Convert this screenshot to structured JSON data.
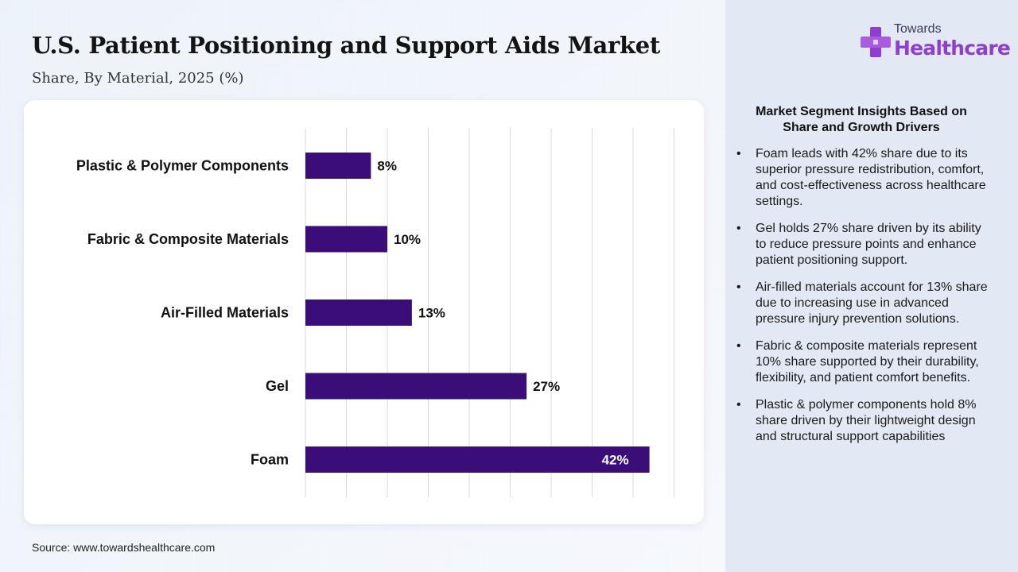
{
  "header": {
    "title": "U.S. Patient Positioning and Support Aids Market",
    "subtitle": "Share, By Material, 2025 (%)"
  },
  "logo": {
    "line1": "Towards",
    "line2": "Healthcare",
    "icon": "medical-cross-icon"
  },
  "chart_data": {
    "type": "bar",
    "orientation": "horizontal",
    "categories": [
      "Plastic & Polymer Components",
      "Fabric & Composite Materials",
      "Air-Filled Materials",
      "Gel",
      "Foam"
    ],
    "values": [
      8,
      10,
      13,
      27,
      42
    ],
    "value_labels": [
      "8%",
      "10%",
      "13%",
      "27%",
      "42%"
    ],
    "xlim": [
      0,
      45
    ],
    "grid": true,
    "bar_color": "#3a0d78",
    "title": "",
    "xlabel": "",
    "ylabel": ""
  },
  "insights": {
    "title": "Market Segment Insights Based on Share and Growth Drivers",
    "items": [
      "Foam leads with 42% share due to its superior pressure redistribution, comfort, and cost-effectiveness across healthcare settings.",
      "Gel holds 27% share driven by its ability to reduce pressure points and enhance patient positioning support.",
      "Air-filled materials account for 13% share due to increasing use in advanced pressure injury prevention solutions.",
      "Fabric & composite materials represent 10% share supported by their durability, flexibility, and patient comfort benefits.",
      "Plastic & polymer components hold 8% share driven by their lightweight design and structural support capabilities"
    ]
  },
  "footer": {
    "source": "Source: www.towardshealthcare.com"
  }
}
